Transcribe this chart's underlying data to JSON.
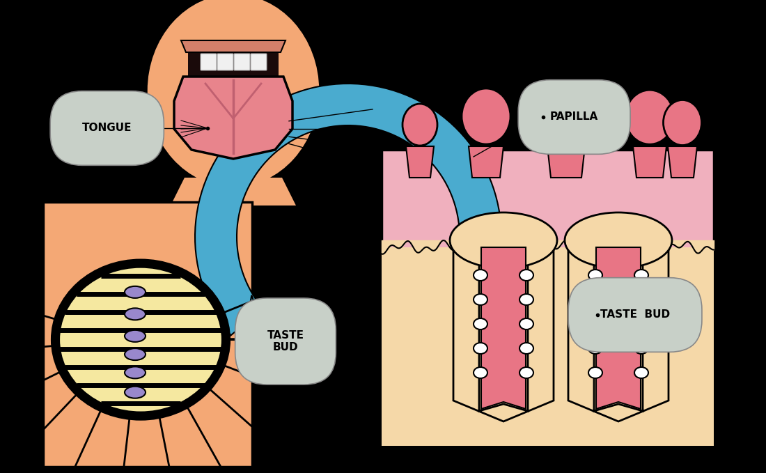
{
  "background_color": "#000000",
  "skin_color": "#F4A875",
  "lip_color": "#D4806A",
  "tongue_color": "#E8848C",
  "tongue_dark": "#C06070",
  "mouth_dark": "#1a0a0a",
  "blue_color": "#4AABCF",
  "papilla_pink": "#E87585",
  "papilla_bg": "#F0B0BE",
  "cream_color": "#F5D8A8",
  "cream_light": "#FAE8C8",
  "purple_color": "#9988CC",
  "label_bg": "#C8D0C8",
  "label_border": "#888888",
  "black": "#000000",
  "white": "#FFFFFF",
  "tooth_color": "#F0F0F0",
  "labels": {
    "tongue": "TONGUE",
    "taste_bud_left": "TASTE\nBUD",
    "papilla": "PAPILLA",
    "taste_bud_right": "TASTE  BUD"
  }
}
